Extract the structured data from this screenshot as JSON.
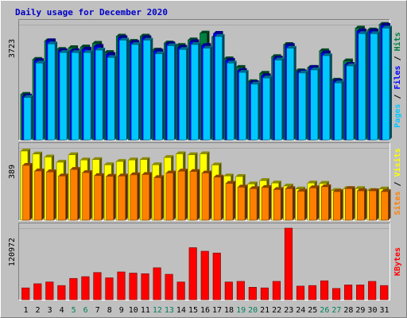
{
  "chart_data": {
    "type": "bar",
    "title": "Daily usage for December 2020",
    "colors": {
      "background": "#c0c0c0",
      "border_light": "#ffffff",
      "border_dark": "#808080",
      "title": "#0000c8",
      "hits": "#008040",
      "files": "#0000ff",
      "pages": "#00c8ff",
      "visits": "#ffff00",
      "sites": "#ff8000",
      "kbytes": "#ff0000",
      "weekend_label": "#00805c",
      "weekday_label": "#000000"
    },
    "categories": [
      "1",
      "2",
      "3",
      "4",
      "5",
      "6",
      "7",
      "8",
      "9",
      "10",
      "11",
      "12",
      "13",
      "14",
      "15",
      "16",
      "17",
      "18",
      "19",
      "20",
      "21",
      "22",
      "23",
      "24",
      "25",
      "26",
      "27",
      "28",
      "29",
      "30",
      "31"
    ],
    "weekend_days": [
      "5",
      "6",
      "12",
      "13",
      "19",
      "20",
      "26",
      "27"
    ],
    "panels": [
      {
        "id": "hits-files-pages",
        "max_label": "3723",
        "ylim": [
          0,
          3723
        ],
        "legend": [
          {
            "text": "Hits",
            "color": "#008040"
          },
          {
            "text": "Files",
            "color": "#0000ff"
          },
          {
            "text": "Pages",
            "color": "#00c8ff"
          }
        ],
        "separator": " / ",
        "series": [
          {
            "name": "Hits",
            "values": [
              1470,
              2600,
              3200,
              2920,
              2980,
              3000,
              3120,
              2820,
              3350,
              3180,
              3350,
              2900,
              3130,
              3050,
              3230,
              3450,
              3330,
              2620,
              2340,
              1880,
              2150,
              2690,
              3080,
              2230,
              2340,
              2880,
              1930,
              2550,
              3610,
              3550,
              3730
            ]
          },
          {
            "name": "Files",
            "values": [
              1420,
              2560,
              3200,
              2880,
              2880,
              2930,
              3020,
              2760,
              3300,
              3150,
              3300,
              2870,
              3100,
              2990,
              3170,
              3050,
              3440,
              2570,
              2240,
              1850,
              2070,
              2640,
              3050,
              2200,
              2340,
              2810,
              1900,
              2440,
              3520,
              3520,
              3700
            ]
          },
          {
            "name": "Pages",
            "values": [
              1370,
              2480,
              3100,
              2820,
              2820,
              2820,
              2900,
              2660,
              3220,
              3080,
              3220,
              2780,
              3040,
              2920,
              3080,
              2960,
              3340,
              2480,
              2180,
              1800,
              2000,
              2580,
              2960,
              2160,
              2260,
              2720,
              1840,
              2390,
              3430,
              3430,
              3610
            ]
          }
        ]
      },
      {
        "id": "visits-sites",
        "max_label": "389",
        "ylim": [
          0,
          389
        ],
        "legend": [
          {
            "text": "Visits",
            "color": "#ffff00"
          },
          {
            "text": "Sites",
            "color": "#ff8000"
          }
        ],
        "separator": " / ",
        "series": [
          {
            "name": "Visits",
            "values": [
              372,
              356,
              340,
              312,
              352,
              324,
              326,
              298,
              316,
              324,
              326,
              298,
              337,
              357,
              352,
              357,
              297,
              238,
              235,
              195,
              213,
              200,
              184,
              168,
              200,
              198,
              160,
              170,
              170,
              160,
              168
            ]
          },
          {
            "name": "Sites",
            "values": [
              295,
              265,
              260,
              238,
              273,
              256,
              240,
              236,
              238,
              244,
              246,
              229,
              254,
              264,
              262,
              254,
              232,
              198,
              178,
              170,
              176,
              165,
              170,
              156,
              174,
              180,
              154,
              170,
              158,
              158,
              154
            ]
          }
        ]
      },
      {
        "id": "kbytes",
        "max_label": "120972",
        "ylim": [
          0,
          120972
        ],
        "legend": [
          {
            "text": "KBytes",
            "color": "#ff0000"
          }
        ],
        "separator": "",
        "series": [
          {
            "name": "KBytes",
            "values": [
              20000,
              27000,
              30000,
              24000,
              36000,
              39000,
              46000,
              37000,
              47000,
              45000,
              44000,
              54000,
              43000,
              30000,
              88000,
              82000,
              79000,
              30000,
              31000,
              21000,
              20000,
              31000,
              120972,
              23000,
              24000,
              32000,
              19000,
              25000,
              25000,
              31000,
              24000
            ]
          }
        ]
      }
    ]
  }
}
